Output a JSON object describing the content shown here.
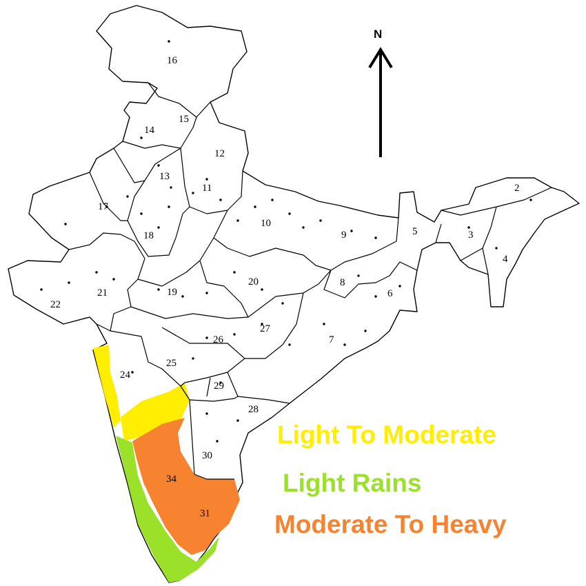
{
  "north_label": "N",
  "region_numbers": [
    "2",
    "3",
    "4",
    "5",
    "6",
    "7",
    "8",
    "9",
    "10",
    "11",
    "12",
    "13",
    "14",
    "15",
    "16",
    "17",
    "18",
    "19",
    "20",
    "21",
    "22",
    "24",
    "25",
    "26",
    "27",
    "28",
    "29",
    "30",
    "31",
    "34"
  ],
  "legend": [
    {
      "label": "Light To Moderate",
      "color": "#ffee00"
    },
    {
      "label": "Light Rains",
      "color": "#9be12a"
    },
    {
      "label": "Moderate To Heavy",
      "color": "#f78331"
    }
  ]
}
